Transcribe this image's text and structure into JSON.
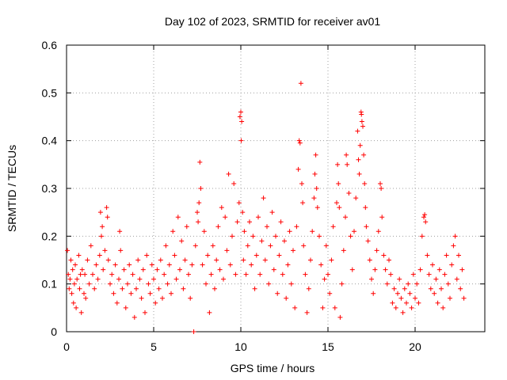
{
  "chart_data": {
    "type": "scatter",
    "title": "Day 102 of 2023, SRMTID for receiver av01",
    "xlabel": "GPS time / hours",
    "ylabel": "SRMTID / TECUs",
    "xlim": [
      0,
      24
    ],
    "ylim": [
      0,
      0.6
    ],
    "xticks": [
      0,
      5,
      10,
      15,
      20
    ],
    "xtick_labels": [
      "0",
      "5",
      "10",
      "15",
      "20"
    ],
    "yticks": [
      0,
      0.1,
      0.2,
      0.3,
      0.4,
      0.5,
      0.6
    ],
    "ytick_labels": [
      "0",
      "0.1",
      "0.2",
      "0.3",
      "0.4",
      "0.5",
      "0.6"
    ],
    "grid": true,
    "marker": "+",
    "marker_color": "#ff0000",
    "series": [
      {
        "name": "av01",
        "points": [
          [
            0.05,
            0.17
          ],
          [
            0.1,
            0.12
          ],
          [
            0.15,
            0.09
          ],
          [
            0.2,
            0.11
          ],
          [
            0.25,
            0.15
          ],
          [
            0.3,
            0.08
          ],
          [
            0.35,
            0.13
          ],
          [
            0.4,
            0.06
          ],
          [
            0.45,
            0.1
          ],
          [
            0.5,
            0.14
          ],
          [
            0.55,
            0.05
          ],
          [
            0.6,
            0.11
          ],
          [
            0.7,
            0.16
          ],
          [
            0.75,
            0.09
          ],
          [
            0.8,
            0.12
          ],
          [
            0.85,
            0.04
          ],
          [
            0.9,
            0.13
          ],
          [
            1.0,
            0.08
          ],
          [
            1.05,
            0.12
          ],
          [
            1.1,
            0.07
          ],
          [
            1.2,
            0.15
          ],
          [
            1.3,
            0.1
          ],
          [
            1.4,
            0.18
          ],
          [
            1.5,
            0.12
          ],
          [
            1.6,
            0.09
          ],
          [
            1.7,
            0.14
          ],
          [
            1.8,
            0.11
          ],
          [
            1.9,
            0.16
          ],
          [
            1.95,
            0.25
          ],
          [
            2.0,
            0.2
          ],
          [
            2.05,
            0.22
          ],
          [
            2.1,
            0.13
          ],
          [
            2.2,
            0.17
          ],
          [
            2.3,
            0.26
          ],
          [
            2.35,
            0.24
          ],
          [
            2.4,
            0.15
          ],
          [
            2.5,
            0.1
          ],
          [
            2.6,
            0.12
          ],
          [
            2.7,
            0.08
          ],
          [
            2.8,
            0.14
          ],
          [
            2.9,
            0.06
          ],
          [
            3.0,
            0.11
          ],
          [
            3.05,
            0.21
          ],
          [
            3.1,
            0.17
          ],
          [
            3.2,
            0.09
          ],
          [
            3.3,
            0.13
          ],
          [
            3.4,
            0.05
          ],
          [
            3.5,
            0.1
          ],
          [
            3.6,
            0.14
          ],
          [
            3.7,
            0.08
          ],
          [
            3.8,
            0.12
          ],
          [
            3.9,
            0.03
          ],
          [
            4.0,
            0.09
          ],
          [
            4.1,
            0.15
          ],
          [
            4.2,
            0.11
          ],
          [
            4.3,
            0.07
          ],
          [
            4.4,
            0.13
          ],
          [
            4.5,
            0.04
          ],
          [
            4.6,
            0.16
          ],
          [
            4.7,
            0.1
          ],
          [
            4.8,
            0.08
          ],
          [
            4.9,
            0.14
          ],
          [
            5.0,
            0.11
          ],
          [
            5.1,
            0.06
          ],
          [
            5.2,
            0.13
          ],
          [
            5.3,
            0.09
          ],
          [
            5.4,
            0.15
          ],
          [
            5.5,
            0.07
          ],
          [
            5.6,
            0.12
          ],
          [
            5.7,
            0.18
          ],
          [
            5.8,
            0.1
          ],
          [
            5.9,
            0.14
          ],
          [
            6.0,
            0.08
          ],
          [
            6.1,
            0.21
          ],
          [
            6.2,
            0.16
          ],
          [
            6.3,
            0.11
          ],
          [
            6.4,
            0.24
          ],
          [
            6.5,
            0.13
          ],
          [
            6.6,
            0.19
          ],
          [
            6.7,
            0.09
          ],
          [
            6.8,
            0.15
          ],
          [
            6.9,
            0.22
          ],
          [
            7.0,
            0.12
          ],
          [
            7.1,
            0.07
          ],
          [
            7.2,
            0.14
          ],
          [
            7.3,
            0.0
          ],
          [
            7.4,
            0.18
          ],
          [
            7.5,
            0.25
          ],
          [
            7.55,
            0.23
          ],
          [
            7.6,
            0.27
          ],
          [
            7.65,
            0.355
          ],
          [
            7.7,
            0.3
          ],
          [
            7.8,
            0.14
          ],
          [
            7.9,
            0.21
          ],
          [
            8.0,
            0.1
          ],
          [
            8.1,
            0.16
          ],
          [
            8.2,
            0.04
          ],
          [
            8.3,
            0.12
          ],
          [
            8.4,
            0.18
          ],
          [
            8.5,
            0.09
          ],
          [
            8.6,
            0.15
          ],
          [
            8.7,
            0.22
          ],
          [
            8.8,
            0.13
          ],
          [
            8.9,
            0.26
          ],
          [
            9.0,
            0.11
          ],
          [
            9.1,
            0.24
          ],
          [
            9.2,
            0.17
          ],
          [
            9.3,
            0.33
          ],
          [
            9.4,
            0.14
          ],
          [
            9.5,
            0.2
          ],
          [
            9.6,
            0.31
          ],
          [
            9.7,
            0.12
          ],
          [
            9.8,
            0.23
          ],
          [
            9.9,
            0.27
          ],
          [
            9.95,
            0.45
          ],
          [
            10.0,
            0.46
          ],
          [
            10.02,
            0.4
          ],
          [
            10.05,
            0.44
          ],
          [
            10.1,
            0.25
          ],
          [
            10.15,
            0.15
          ],
          [
            10.2,
            0.21
          ],
          [
            10.3,
            0.12
          ],
          [
            10.4,
            0.18
          ],
          [
            10.5,
            0.23
          ],
          [
            10.6,
            0.14
          ],
          [
            10.7,
            0.2
          ],
          [
            10.8,
            0.09
          ],
          [
            10.9,
            0.16
          ],
          [
            11.0,
            0.24
          ],
          [
            11.1,
            0.12
          ],
          [
            11.2,
            0.19
          ],
          [
            11.3,
            0.28
          ],
          [
            11.4,
            0.15
          ],
          [
            11.5,
            0.22
          ],
          [
            11.6,
            0.1
          ],
          [
            11.7,
            0.18
          ],
          [
            11.8,
            0.25
          ],
          [
            11.9,
            0.13
          ],
          [
            12.0,
            0.2
          ],
          [
            12.1,
            0.08
          ],
          [
            12.2,
            0.16
          ],
          [
            12.3,
            0.23
          ],
          [
            12.4,
            0.12
          ],
          [
            12.5,
            0.19
          ],
          [
            12.6,
            0.07
          ],
          [
            12.7,
            0.14
          ],
          [
            12.8,
            0.21
          ],
          [
            12.9,
            0.1
          ],
          [
            13.0,
            0.17
          ],
          [
            13.1,
            0.05
          ],
          [
            13.2,
            0.22
          ],
          [
            13.3,
            0.34
          ],
          [
            13.35,
            0.4
          ],
          [
            13.4,
            0.395
          ],
          [
            13.45,
            0.52
          ],
          [
            13.5,
            0.31
          ],
          [
            13.55,
            0.27
          ],
          [
            13.6,
            0.18
          ],
          [
            13.7,
            0.12
          ],
          [
            13.8,
            0.04
          ],
          [
            13.9,
            0.09
          ],
          [
            14.0,
            0.15
          ],
          [
            14.1,
            0.21
          ],
          [
            14.2,
            0.28
          ],
          [
            14.25,
            0.33
          ],
          [
            14.3,
            0.37
          ],
          [
            14.35,
            0.3
          ],
          [
            14.4,
            0.26
          ],
          [
            14.5,
            0.2
          ],
          [
            14.6,
            0.14
          ],
          [
            14.7,
            0.05
          ],
          [
            14.8,
            0.11
          ],
          [
            14.9,
            0.18
          ],
          [
            15.0,
            0.12
          ],
          [
            15.1,
            0.08
          ],
          [
            15.2,
            0.15
          ],
          [
            15.3,
            0.22
          ],
          [
            15.4,
            0.05
          ],
          [
            15.5,
            0.27
          ],
          [
            15.55,
            0.35
          ],
          [
            15.6,
            0.31
          ],
          [
            15.65,
            0.26
          ],
          [
            15.7,
            0.03
          ],
          [
            15.8,
            0.1
          ],
          [
            15.9,
            0.17
          ],
          [
            16.0,
            0.24
          ],
          [
            16.05,
            0.37
          ],
          [
            16.1,
            0.35
          ],
          [
            16.2,
            0.29
          ],
          [
            16.3,
            0.2
          ],
          [
            16.4,
            0.13
          ],
          [
            16.5,
            0.21
          ],
          [
            16.6,
            0.28
          ],
          [
            16.7,
            0.42
          ],
          [
            16.75,
            0.36
          ],
          [
            16.8,
            0.33
          ],
          [
            16.85,
            0.39
          ],
          [
            16.9,
            0.46
          ],
          [
            16.92,
            0.455
          ],
          [
            16.95,
            0.44
          ],
          [
            17.0,
            0.43
          ],
          [
            17.05,
            0.37
          ],
          [
            17.1,
            0.31
          ],
          [
            17.15,
            0.26
          ],
          [
            17.2,
            0.22
          ],
          [
            17.3,
            0.19
          ],
          [
            17.4,
            0.15
          ],
          [
            17.5,
            0.11
          ],
          [
            17.6,
            0.08
          ],
          [
            17.7,
            0.13
          ],
          [
            17.8,
            0.17
          ],
          [
            17.9,
            0.21
          ],
          [
            18.0,
            0.31
          ],
          [
            18.05,
            0.3
          ],
          [
            18.1,
            0.24
          ],
          [
            18.2,
            0.16
          ],
          [
            18.3,
            0.13
          ],
          [
            18.4,
            0.1
          ],
          [
            18.5,
            0.15
          ],
          [
            18.6,
            0.12
          ],
          [
            18.7,
            0.06
          ],
          [
            18.8,
            0.09
          ],
          [
            18.9,
            0.05
          ],
          [
            19.0,
            0.08
          ],
          [
            19.1,
            0.11
          ],
          [
            19.2,
            0.07
          ],
          [
            19.3,
            0.04
          ],
          [
            19.4,
            0.09
          ],
          [
            19.5,
            0.06
          ],
          [
            19.6,
            0.1
          ],
          [
            19.7,
            0.08
          ],
          [
            19.8,
            0.05
          ],
          [
            19.9,
            0.12
          ],
          [
            20.0,
            0.07
          ],
          [
            20.1,
            0.1
          ],
          [
            20.2,
            0.06
          ],
          [
            20.3,
            0.13
          ],
          [
            20.4,
            0.2
          ],
          [
            20.5,
            0.24
          ],
          [
            20.55,
            0.245
          ],
          [
            20.6,
            0.23
          ],
          [
            20.7,
            0.16
          ],
          [
            20.8,
            0.12
          ],
          [
            20.9,
            0.09
          ],
          [
            21.0,
            0.14
          ],
          [
            21.1,
            0.08
          ],
          [
            21.2,
            0.11
          ],
          [
            21.3,
            0.06
          ],
          [
            21.4,
            0.13
          ],
          [
            21.5,
            0.09
          ],
          [
            21.6,
            0.05
          ],
          [
            21.7,
            0.12
          ],
          [
            21.8,
            0.16
          ],
          [
            21.9,
            0.1
          ],
          [
            22.0,
            0.07
          ],
          [
            22.1,
            0.14
          ],
          [
            22.2,
            0.18
          ],
          [
            22.3,
            0.2
          ],
          [
            22.4,
            0.11
          ],
          [
            22.5,
            0.16
          ],
          [
            22.6,
            0.09
          ],
          [
            22.7,
            0.13
          ],
          [
            22.8,
            0.07
          ]
        ]
      }
    ]
  }
}
